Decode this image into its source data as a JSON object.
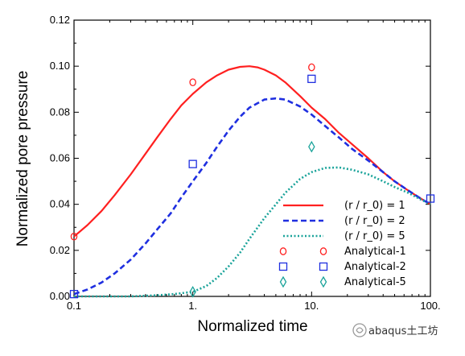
{
  "chart_data": {
    "type": "line",
    "xlabel": "Normalized time",
    "ylabel": "Normalized pore pressure",
    "xscale": "log",
    "xlim": [
      0.1,
      100
    ],
    "ylim": [
      0,
      0.12
    ],
    "xticks": [
      {
        "value": 0.1,
        "label": "0.1"
      },
      {
        "value": 1,
        "label": "1."
      },
      {
        "value": 10,
        "label": "10."
      },
      {
        "value": 100,
        "label": "100."
      }
    ],
    "yticks": [
      {
        "value": 0.0,
        "label": "0.00"
      },
      {
        "value": 0.02,
        "label": "0.02"
      },
      {
        "value": 0.04,
        "label": "0.04"
      },
      {
        "value": 0.06,
        "label": "0.06"
      },
      {
        "value": 0.08,
        "label": "0.08"
      },
      {
        "value": 0.1,
        "label": "0.10"
      },
      {
        "value": 0.12,
        "label": "0.12"
      }
    ],
    "grid": false,
    "legend_position": "bottom-right",
    "series": [
      {
        "name": "(r / r_0) = 1",
        "kind": "line",
        "style": "solid",
        "color": "#ff2020",
        "x": [
          0.1,
          0.13,
          0.17,
          0.22,
          0.3,
          0.4,
          0.5,
          0.65,
          0.8,
          1.0,
          1.3,
          1.6,
          2.0,
          2.5,
          3.0,
          3.5,
          4.0,
          5.0,
          6.0,
          8.0,
          10.0,
          13.0,
          17.0,
          22.0,
          30.0,
          40.0,
          50.0,
          65.0,
          80.0,
          100.0
        ],
        "y": [
          0.026,
          0.031,
          0.037,
          0.044,
          0.053,
          0.062,
          0.069,
          0.077,
          0.083,
          0.088,
          0.093,
          0.096,
          0.0985,
          0.0997,
          0.1,
          0.0995,
          0.0985,
          0.096,
          0.093,
          0.087,
          0.082,
          0.077,
          0.071,
          0.066,
          0.06,
          0.054,
          0.05,
          0.046,
          0.043,
          0.04
        ]
      },
      {
        "name": "(r / r_0) = 2",
        "kind": "line",
        "style": "dashed",
        "color": "#1f2fe0",
        "x": [
          0.1,
          0.13,
          0.17,
          0.22,
          0.3,
          0.4,
          0.5,
          0.65,
          0.8,
          1.0,
          1.3,
          1.6,
          2.0,
          2.5,
          3.0,
          4.0,
          5.0,
          6.0,
          8.0,
          10.0,
          13.0,
          17.0,
          22.0,
          30.0,
          40.0,
          50.0,
          65.0,
          80.0,
          100.0
        ],
        "y": [
          0.001,
          0.003,
          0.006,
          0.01,
          0.016,
          0.023,
          0.029,
          0.036,
          0.043,
          0.05,
          0.058,
          0.065,
          0.072,
          0.078,
          0.082,
          0.0855,
          0.086,
          0.0855,
          0.0825,
          0.079,
          0.074,
          0.069,
          0.064,
          0.059,
          0.054,
          0.05,
          0.046,
          0.043,
          0.04
        ]
      },
      {
        "name": "(r / r_0) = 5",
        "kind": "line",
        "style": "dotted",
        "color": "#1aa39a",
        "x": [
          0.1,
          0.2,
          0.3,
          0.5,
          0.7,
          1.0,
          1.3,
          1.6,
          2.0,
          2.5,
          3.0,
          4.0,
          5.0,
          6.0,
          8.0,
          10.0,
          13.0,
          17.0,
          22.0,
          30.0,
          40.0,
          50.0,
          65.0,
          80.0,
          100.0
        ],
        "y": [
          0.0,
          0.0,
          0.0,
          0.0005,
          0.001,
          0.002,
          0.0045,
          0.008,
          0.013,
          0.019,
          0.025,
          0.034,
          0.04,
          0.045,
          0.051,
          0.054,
          0.0558,
          0.056,
          0.055,
          0.053,
          0.05,
          0.0475,
          0.045,
          0.0425,
          0.04
        ]
      },
      {
        "name": "Analytical-1",
        "kind": "marker",
        "marker": "circle",
        "color": "#ff2020",
        "x": [
          0.1,
          1.0,
          10.0
        ],
        "y": [
          0.026,
          0.093,
          0.0995
        ]
      },
      {
        "name": "Analytical-2",
        "kind": "marker",
        "marker": "square",
        "color": "#1f2fe0",
        "x": [
          0.1,
          1.0,
          10.0,
          100.0
        ],
        "y": [
          0.001,
          0.0575,
          0.0945,
          0.0425
        ]
      },
      {
        "name": "Analytical-5",
        "kind": "marker",
        "marker": "diamond",
        "color": "#1aa39a",
        "x": [
          1.0,
          10.0
        ],
        "y": [
          0.002,
          0.065
        ]
      }
    ]
  },
  "watermark": {
    "text": "abaqus土工坊"
  }
}
